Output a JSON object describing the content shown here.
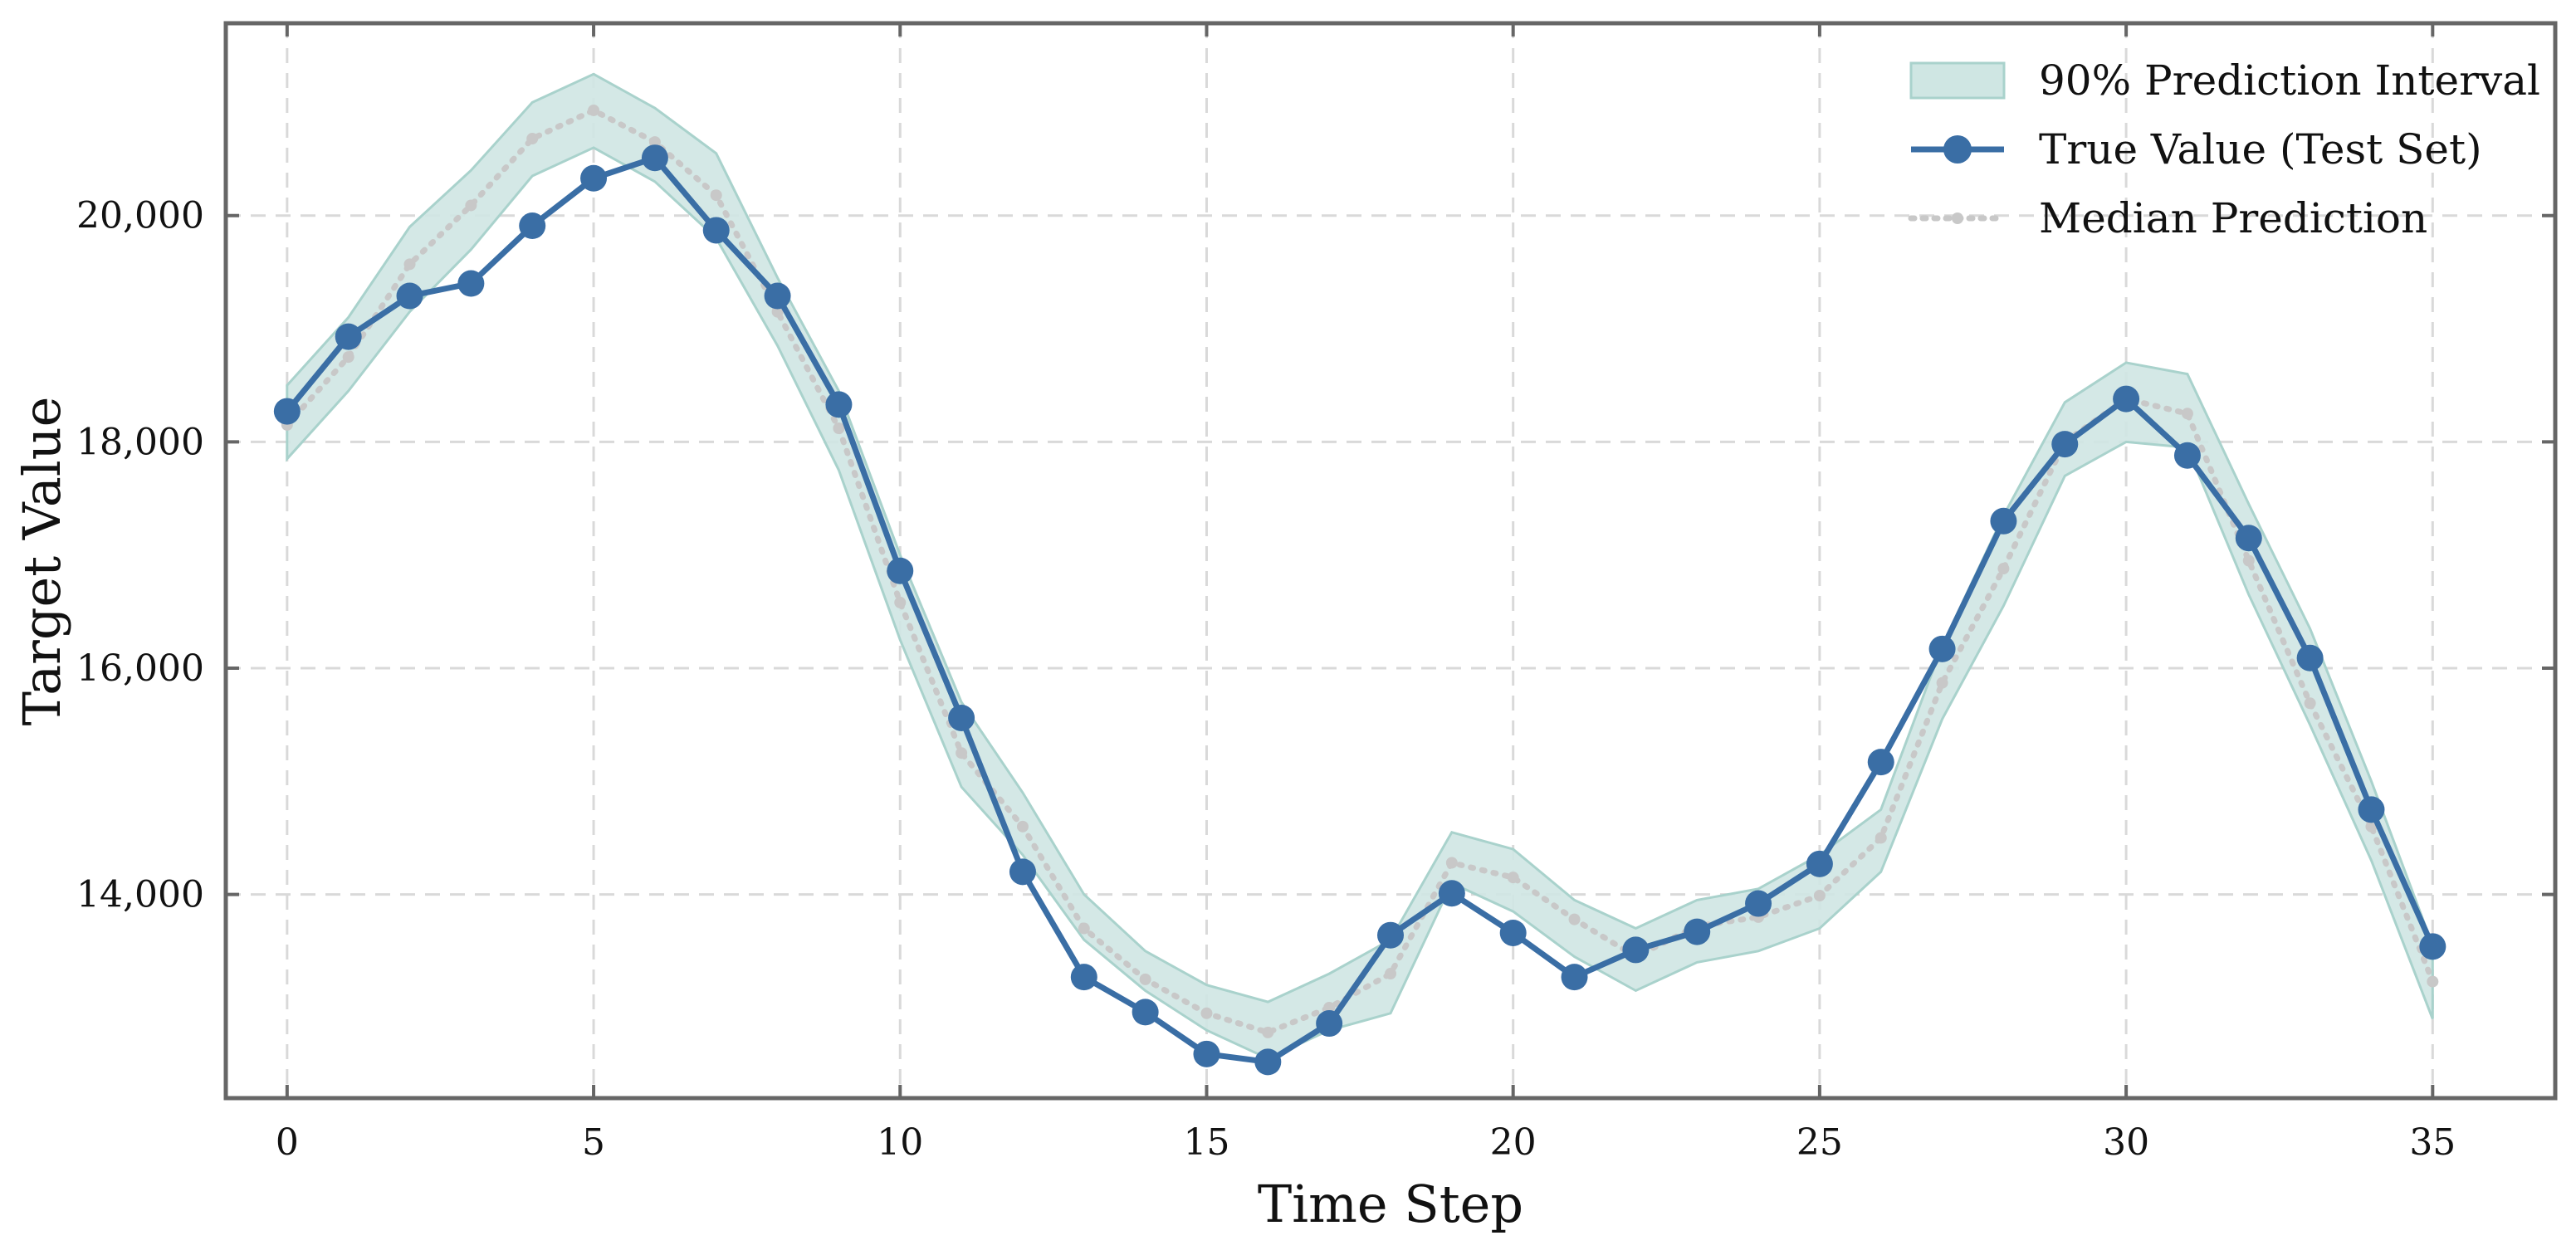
{
  "chart_data": {
    "type": "line",
    "title": "",
    "xlabel": "Time Step",
    "ylabel": "Target Value",
    "xlim": [
      -1,
      37
    ],
    "ylim": [
      12200,
      21700
    ],
    "xticks": [
      0,
      5,
      10,
      15,
      20,
      25,
      30,
      35
    ],
    "xtick_labels": [
      "0",
      "5",
      "10",
      "15",
      "20",
      "25",
      "30",
      "35"
    ],
    "yticks": [
      14000,
      16000,
      18000,
      20000
    ],
    "ytick_labels": [
      "14,000",
      "16,000",
      "18,000",
      "20,000"
    ],
    "grid": true,
    "legend_position": "top-right",
    "x": [
      0,
      1,
      2,
      3,
      4,
      5,
      6,
      7,
      8,
      9,
      10,
      11,
      12,
      13,
      14,
      15,
      16,
      17,
      18,
      19,
      20,
      21,
      22,
      23,
      24,
      25,
      26,
      27,
      28,
      29,
      30,
      31,
      32,
      33,
      34,
      35
    ],
    "series": [
      {
        "name": "90% Prediction Interval",
        "kind": "band",
        "color": "#cfe6e3",
        "edge_color": "#a9d2cc",
        "lower": [
          17850,
          18450,
          19150,
          19700,
          20350,
          20600,
          20300,
          19800,
          18850,
          17750,
          16250,
          14950,
          14350,
          13600,
          13150,
          12800,
          12550,
          12800,
          12950,
          14100,
          13850,
          13450,
          13150,
          13400,
          13500,
          13700,
          14200,
          15550,
          16550,
          17700,
          18000,
          17950,
          16650,
          15500,
          14300,
          12900
        ],
        "upper": [
          18500,
          19100,
          19900,
          20400,
          21000,
          21250,
          20950,
          20550,
          19450,
          18450,
          17000,
          15700,
          14900,
          14000,
          13500,
          13200,
          13050,
          13300,
          13600,
          14550,
          14400,
          13950,
          13700,
          13950,
          14050,
          14350,
          14750,
          16200,
          17350,
          18350,
          18700,
          18600,
          17450,
          16350,
          15000,
          13550
        ]
      },
      {
        "name": "True Value (Test Set)",
        "kind": "line",
        "color": "#3a6ea5",
        "marker": "circle",
        "values": [
          18270,
          18930,
          19290,
          19400,
          19910,
          20330,
          20510,
          19870,
          19290,
          18330,
          16860,
          15560,
          14200,
          13270,
          12960,
          12590,
          12520,
          12860,
          13640,
          14010,
          13660,
          13270,
          13510,
          13670,
          13920,
          14270,
          15170,
          16170,
          17300,
          17980,
          18380,
          17880,
          17150,
          16090,
          14750,
          13540
        ]
      },
      {
        "name": "Median Prediction",
        "kind": "line",
        "color": "#c8c8c8",
        "marker": "dot",
        "style": "dotted",
        "values": [
          18150,
          18750,
          19570,
          20090,
          20680,
          20930,
          20650,
          20180,
          19150,
          18120,
          16580,
          15250,
          14600,
          13700,
          13250,
          12950,
          12780,
          13000,
          13300,
          14280,
          14150,
          13780,
          13450,
          13720,
          13800,
          13990,
          14500,
          15870,
          16880,
          18000,
          18380,
          18250,
          16950,
          15690,
          14600,
          13230
        ]
      }
    ]
  }
}
